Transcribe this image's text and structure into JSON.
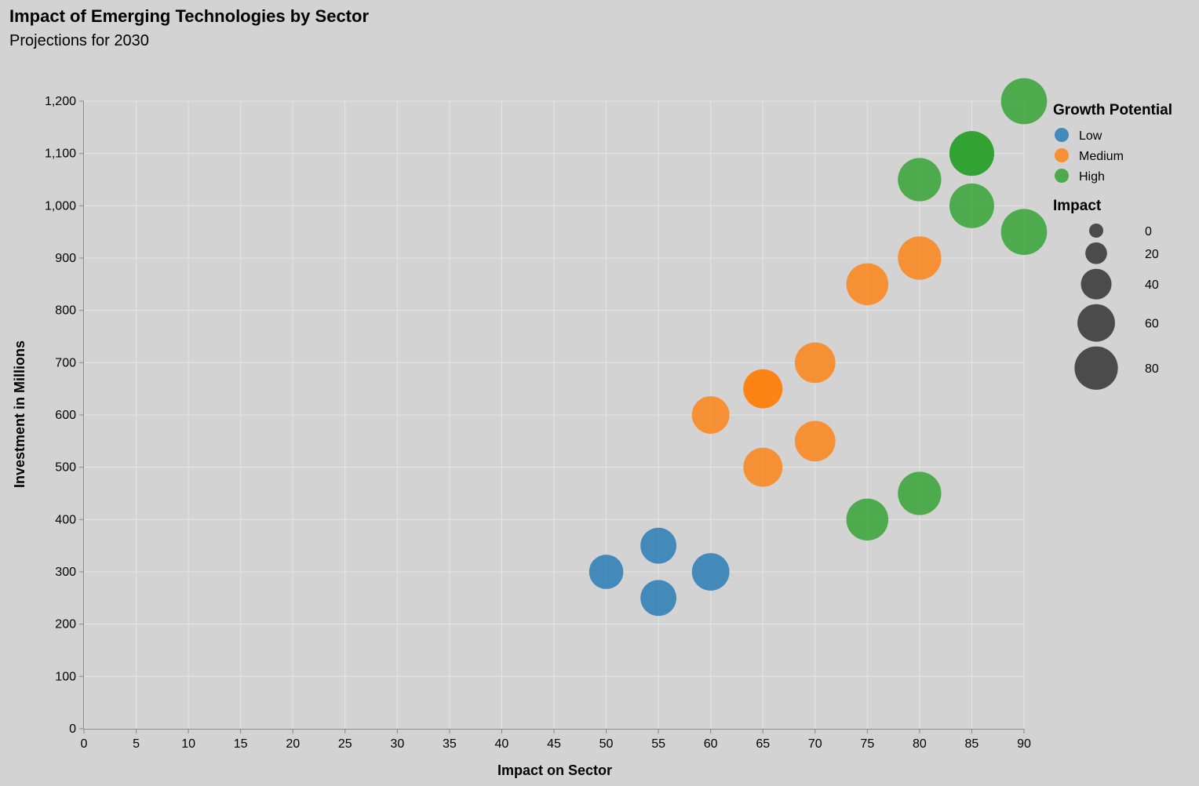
{
  "chart_data": {
    "type": "scatter",
    "title": "Impact of Emerging Technologies by Sector",
    "subtitle": "Projections for 2030",
    "xlabel": "Impact on Sector",
    "ylabel": "Investment in Millions",
    "xlim": [
      0,
      90
    ],
    "ylim": [
      0,
      1200
    ],
    "x_ticks": [
      0,
      5,
      10,
      15,
      20,
      25,
      30,
      35,
      40,
      45,
      50,
      55,
      60,
      65,
      70,
      75,
      80,
      85,
      90
    ],
    "y_ticks": [
      0,
      100,
      200,
      300,
      400,
      500,
      600,
      700,
      800,
      900,
      1000,
      1100,
      1200
    ],
    "grid": true,
    "legend_placement": "right",
    "color_legend": {
      "title": "Growth Potential",
      "entries": [
        {
          "label": "Low",
          "color": "#1f77b4"
        },
        {
          "label": "Medium",
          "color": "#ff7f0e"
        },
        {
          "label": "High",
          "color": "#2ca02c"
        }
      ]
    },
    "size_legend": {
      "title": "Impact",
      "values": [
        0,
        20,
        40,
        60,
        80
      ]
    },
    "points": [
      {
        "x": 50,
        "y": 300,
        "size": 50,
        "group": "Low"
      },
      {
        "x": 55,
        "y": 350,
        "size": 55,
        "group": "Low"
      },
      {
        "x": 55,
        "y": 250,
        "size": 55,
        "group": "Low"
      },
      {
        "x": 60,
        "y": 300,
        "size": 60,
        "group": "Low"
      },
      {
        "x": 60,
        "y": 600,
        "size": 60,
        "group": "Medium"
      },
      {
        "x": 65,
        "y": 650,
        "size": 65,
        "group": "Medium"
      },
      {
        "x": 65,
        "y": 650,
        "size": 65,
        "group": "Medium"
      },
      {
        "x": 65,
        "y": 500,
        "size": 65,
        "group": "Medium"
      },
      {
        "x": 70,
        "y": 700,
        "size": 70,
        "group": "Medium"
      },
      {
        "x": 70,
        "y": 550,
        "size": 70,
        "group": "Medium"
      },
      {
        "x": 75,
        "y": 850,
        "size": 75,
        "group": "Medium"
      },
      {
        "x": 80,
        "y": 900,
        "size": 80,
        "group": "Medium"
      },
      {
        "x": 75,
        "y": 400,
        "size": 75,
        "group": "High"
      },
      {
        "x": 80,
        "y": 450,
        "size": 80,
        "group": "High"
      },
      {
        "x": 80,
        "y": 1050,
        "size": 80,
        "group": "High"
      },
      {
        "x": 85,
        "y": 1000,
        "size": 85,
        "group": "High"
      },
      {
        "x": 85,
        "y": 1100,
        "size": 85,
        "group": "High"
      },
      {
        "x": 85,
        "y": 1100,
        "size": 85,
        "group": "High"
      },
      {
        "x": 90,
        "y": 1200,
        "size": 90,
        "group": "High"
      },
      {
        "x": 90,
        "y": 950,
        "size": 90,
        "group": "High"
      }
    ]
  }
}
